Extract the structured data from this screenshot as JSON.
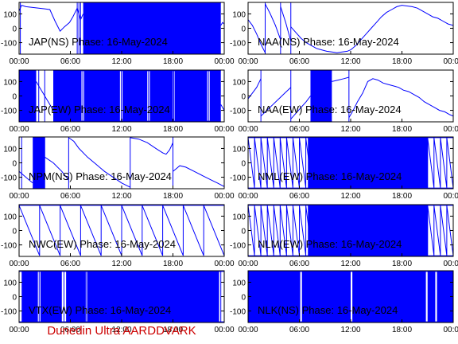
{
  "footer": {
    "text": "Dunedin Ultra AARDDVARK",
    "color": "#cc0000"
  },
  "style": {
    "trace_color": "#0000ff",
    "axis_color": "#000000"
  },
  "axes_defaults": {
    "x_ticks": [
      "00:00",
      "06:00",
      "12:00",
      "18:00",
      "00:00"
    ],
    "y_ticks": [
      100,
      0,
      -100
    ],
    "xlim": [
      0,
      24
    ],
    "ylim": [
      -180,
      180
    ]
  },
  "chart_data": [
    {
      "type": "line",
      "title": "JAP(NS) Phase: 16-May-2024",
      "xlim": [
        0,
        24
      ],
      "ylim": [
        -180,
        180
      ],
      "segments": [
        {
          "x": [
            0.0,
            0.3,
            0.8,
            1.5,
            2.3,
            3.0,
            3.6,
            4.2,
            4.8,
            5.3,
            5.9,
            6.3,
            6.8,
            7.2,
            7.5
          ],
          "y": [
            120,
            160,
            150,
            145,
            140,
            135,
            130,
            50,
            -20,
            10,
            40,
            80,
            140,
            60,
            100
          ]
        },
        {
          "x": [
            7.5,
            23.6
          ],
          "y": [
            175,
            175
          ]
        },
        {
          "x": [
            7.5,
            23.6
          ],
          "y": [
            -175,
            -175
          ]
        },
        {
          "x": [
            23.6,
            23.8,
            24.0
          ],
          "y": [
            20,
            40,
            30
          ]
        }
      ],
      "bands": [
        [
          7.5,
          23.6
        ]
      ],
      "vlines": [
        0.15,
        6.8,
        7.0,
        7.2
      ]
    },
    {
      "type": "line",
      "title": "NAA(NS) Phase: 16-May-2024",
      "xlim": [
        0,
        24
      ],
      "ylim": [
        -180,
        180
      ],
      "segments": [
        {
          "x": [
            0.0,
            0.5,
            1.0,
            1.5,
            2.0
          ],
          "y": [
            60,
            20,
            -40,
            -110,
            -170
          ]
        },
        {
          "x": [
            2.0,
            2.6,
            3.2,
            3.8
          ],
          "y": [
            170,
            100,
            20,
            -80
          ]
        },
        {
          "x": [
            3.8,
            4.4,
            5.0
          ],
          "y": [
            150,
            40,
            -90
          ]
        },
        {
          "x": [
            5.0,
            5.6,
            6.2,
            6.8,
            7.4,
            8.0,
            8.6,
            9.2,
            9.8,
            10.4,
            11.0,
            11.6,
            12.0
          ],
          "y": [
            10,
            -30,
            -70,
            -100,
            -120,
            -140,
            -150,
            -160,
            -165,
            -170,
            -165,
            -160,
            -150
          ]
        },
        {
          "x": [
            12.0,
            12.6,
            13.2,
            13.8,
            14.4,
            15.0,
            15.6,
            16.2,
            16.8,
            17.4,
            18.0,
            18.6,
            19.2,
            19.8,
            20.4,
            21.0,
            21.6,
            22.2,
            22.8,
            23.4,
            24.0
          ],
          "y": [
            -150,
            -120,
            -80,
            -40,
            0,
            40,
            80,
            110,
            130,
            150,
            160,
            155,
            150,
            140,
            120,
            100,
            80,
            70,
            50,
            30,
            20
          ]
        }
      ],
      "bands": [],
      "vlines": [
        2.0,
        3.8,
        5.0
      ]
    },
    {
      "type": "line",
      "title": "JAP(EW) Phase: 16-May-2024",
      "xlim": [
        0,
        24
      ],
      "ylim": [
        -180,
        180
      ],
      "segments": [
        {
          "x": [
            0.0,
            2.0
          ],
          "y": [
            175,
            175
          ]
        },
        {
          "x": [
            0.0,
            2.0
          ],
          "y": [
            -175,
            -175
          ]
        },
        {
          "x": [
            2.0,
            2.4,
            2.8,
            3.2,
            3.6,
            4.0
          ],
          "y": [
            100,
            60,
            20,
            -20,
            -60,
            -100
          ]
        },
        {
          "x": [
            4.0,
            23.6
          ],
          "y": [
            175,
            175
          ]
        },
        {
          "x": [
            4.0,
            23.6
          ],
          "y": [
            -175,
            -175
          ]
        },
        {
          "x": [
            23.6,
            24.0
          ],
          "y": [
            -60,
            -100
          ]
        }
      ],
      "bands": [
        [
          0.0,
          2.0
        ],
        [
          4.0,
          7.3
        ],
        [
          7.6,
          11.8
        ],
        [
          12.1,
          15.0
        ],
        [
          15.3,
          18.0
        ],
        [
          18.2,
          22.0
        ],
        [
          22.3,
          23.6
        ]
      ],
      "vlines": [
        2.3,
        3.0,
        7.45,
        11.95,
        15.15,
        18.1,
        22.15
      ]
    },
    {
      "type": "line",
      "title": "NAA(EW) Phase: 16-May-2024",
      "xlim": [
        0,
        24
      ],
      "ylim": [
        -180,
        180
      ],
      "segments": [
        {
          "x": [
            0.0,
            0.5,
            1.0,
            1.5
          ],
          "y": [
            -20,
            20,
            60,
            120
          ]
        },
        {
          "x": [
            1.5,
            2.2,
            2.9,
            3.6,
            4.3,
            5.0
          ],
          "y": [
            -140,
            -100,
            -60,
            -20,
            20,
            60
          ]
        },
        {
          "x": [
            5.0,
            5.6,
            6.2,
            6.8,
            7.3
          ],
          "y": [
            -160,
            -120,
            -80,
            -40,
            0
          ]
        },
        {
          "x": [
            7.3,
            9.8
          ],
          "y": [
            175,
            175
          ]
        },
        {
          "x": [
            7.3,
            9.8
          ],
          "y": [
            -175,
            -175
          ]
        },
        {
          "x": [
            9.8,
            10.5,
            11.2,
            11.8
          ],
          "y": [
            100,
            110,
            120,
            130
          ]
        },
        {
          "x": [
            11.8,
            12.3,
            12.8,
            13.4,
            14.0,
            14.6,
            15.2,
            15.8,
            16.4,
            17.0,
            17.6,
            18.2,
            18.8,
            19.4,
            20.0,
            20.6,
            21.2,
            21.8,
            22.4,
            23.0,
            23.6,
            24.0
          ],
          "y": [
            -150,
            -100,
            -40,
            20,
            100,
            120,
            110,
            90,
            80,
            70,
            60,
            40,
            30,
            10,
            -10,
            -40,
            -60,
            -80,
            -100,
            -110,
            -130,
            -140
          ]
        }
      ],
      "bands": [
        [
          7.3,
          9.8
        ]
      ],
      "vlines": [
        1.5,
        5.0,
        11.8
      ]
    },
    {
      "type": "line",
      "title": "NPM(NS) Phase: 16-May-2024",
      "xlim": [
        0,
        24
      ],
      "ylim": [
        -180,
        180
      ],
      "segments": [
        {
          "x": [
            0.0,
            0.4,
            0.8,
            1.2,
            1.6
          ],
          "y": [
            -60,
            -80,
            -100,
            -120,
            -140
          ]
        },
        {
          "x": [
            1.6,
            3.0
          ],
          "y": [
            175,
            175
          ]
        },
        {
          "x": [
            1.6,
            3.0
          ],
          "y": [
            -175,
            -175
          ]
        },
        {
          "x": [
            3.0,
            4.0,
            5.0,
            5.8
          ],
          "y": [
            40,
            0,
            -60,
            -120
          ]
        },
        {
          "x": [
            5.8,
            6.4,
            7.0,
            8.0,
            9.0,
            10.0,
            11.0,
            12.0,
            13.0
          ],
          "y": [
            175,
            150,
            100,
            40,
            -10,
            -60,
            -100,
            -140,
            -170
          ]
        },
        {
          "x": [
            13.0,
            14.0,
            15.0,
            16.0,
            16.8,
            17.2,
            17.6,
            18.0
          ],
          "y": [
            175,
            165,
            140,
            100,
            70,
            60,
            90,
            140
          ]
        },
        {
          "x": [
            18.0,
            18.4,
            18.8,
            19.5,
            20.5,
            21.5,
            22.5,
            23.2,
            24.0
          ],
          "y": [
            -60,
            -40,
            -20,
            -30,
            -60,
            -90,
            -120,
            -140,
            -165
          ]
        }
      ],
      "bands": [
        [
          1.6,
          3.0
        ]
      ],
      "vlines": [
        0.3,
        3.0,
        5.8,
        13.0,
        18.0
      ]
    },
    {
      "type": "line",
      "title": "NML(EW) Phase: 16-May-2024",
      "xlim": [
        0,
        24
      ],
      "ylim": [
        -180,
        180
      ],
      "segments": [
        {
          "x": [
            0.0,
            24.0
          ],
          "y": [
            175,
            175
          ]
        },
        {
          "x": [
            0.0,
            24.0
          ],
          "y": [
            -175,
            -175
          ]
        }
      ],
      "bands": [
        [
          7.0,
          21.0
        ]
      ],
      "sawtooth": {
        "period": 0.75,
        "from": 0.0,
        "to": 24.0
      },
      "vlines": []
    },
    {
      "type": "line",
      "title": "NWC(EW) Phase: 16-May-2024",
      "xlim": [
        0,
        24
      ],
      "ylim": [
        -180,
        180
      ],
      "segments": [
        {
          "x": [
            0.0,
            24.0
          ],
          "y": [
            175,
            175
          ]
        }
      ],
      "bands": [],
      "sawtooth": {
        "period": 2.4,
        "from": 0.0,
        "to": 24.0
      },
      "vlines": []
    },
    {
      "type": "line",
      "title": "NLM(EW) Phase: 16-May-2024",
      "xlim": [
        0,
        24
      ],
      "ylim": [
        -180,
        180
      ],
      "segments": [
        {
          "x": [
            0.0,
            24.0
          ],
          "y": [
            175,
            175
          ]
        },
        {
          "x": [
            0.0,
            24.0
          ],
          "y": [
            -175,
            -175
          ]
        }
      ],
      "bands": [
        [
          7.0,
          21.0
        ]
      ],
      "sawtooth": {
        "period": 0.75,
        "from": 0.0,
        "to": 24.0
      },
      "vlines": []
    },
    {
      "type": "line",
      "title": "VTX(EW) Phase: 16-May-2024",
      "xlim": [
        0,
        24
      ],
      "ylim": [
        -180,
        180
      ],
      "segments": [
        {
          "x": [
            0.0,
            24.0
          ],
          "y": [
            175,
            175
          ]
        },
        {
          "x": [
            0.0,
            24.0
          ],
          "y": [
            -175,
            -175
          ]
        }
      ],
      "bands": [
        [
          0.3,
          2.2
        ],
        [
          2.5,
          5.0
        ],
        [
          5.5,
          7.8
        ],
        [
          8.0,
          23.4
        ]
      ],
      "vlines": [
        2.35,
        5.25,
        7.9,
        23.6
      ]
    },
    {
      "type": "line",
      "title": "NLK(NS) Phase: 16-May-2024",
      "xlim": [
        0,
        24
      ],
      "ylim": [
        -180,
        180
      ],
      "segments": [
        {
          "x": [
            0.0,
            24.0
          ],
          "y": [
            175,
            175
          ]
        },
        {
          "x": [
            0.0,
            24.0
          ],
          "y": [
            -175,
            -175
          ]
        }
      ],
      "bands": [
        [
          0.0,
          6.1
        ],
        [
          6.3,
          12.0
        ],
        [
          12.2,
          20.8
        ],
        [
          21.0,
          21.9
        ],
        [
          22.1,
          24.0
        ]
      ],
      "vlines": []
    }
  ]
}
